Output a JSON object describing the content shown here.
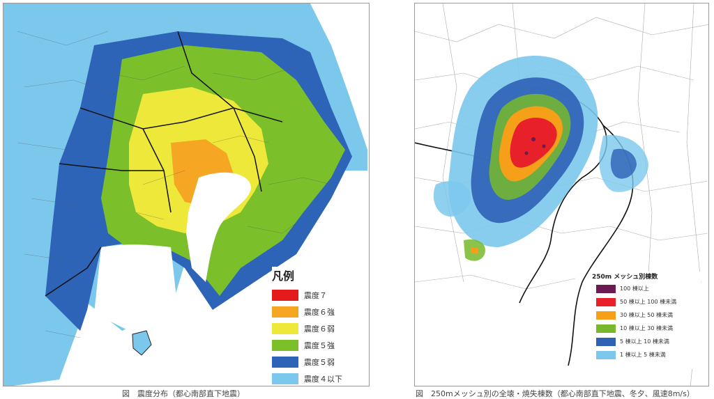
{
  "left_map": {
    "legend_title": "凡例",
    "legend_items": [
      {
        "label": "震度７",
        "color": "#e41a1c"
      },
      {
        "label": "震度６強",
        "color": "#f5a623"
      },
      {
        "label": "震度６弱",
        "color": "#eee83a"
      },
      {
        "label": "震度５強",
        "color": "#7bbf2a"
      },
      {
        "label": "震度５弱",
        "color": "#2e64b8"
      },
      {
        "label": "震度４以下",
        "color": "#7cc8ec"
      }
    ],
    "caption": "図　震度分布（都心南部直下地震）"
  },
  "right_map": {
    "legend_title": "250m メッシュ別棟数",
    "legend_items": [
      {
        "label": "100 棟以上",
        "color": "#6b1a52"
      },
      {
        "label": "50 棟以上 100 棟未満",
        "color": "#e8202a"
      },
      {
        "label": "30 棟以上 50 棟未満",
        "color": "#f5a018"
      },
      {
        "label": "10 棟以上 30 棟未満",
        "color": "#78b82a"
      },
      {
        "label": "5 棟以上 10 棟未満",
        "color": "#2d62b5"
      },
      {
        "label": "1 棟以上 5 棟未満",
        "color": "#7cc8ec"
      }
    ],
    "caption": "図　250mメッシュ別の全壊・焼失棟数（都心南部直下地震、冬夕、風速8m/s）"
  }
}
